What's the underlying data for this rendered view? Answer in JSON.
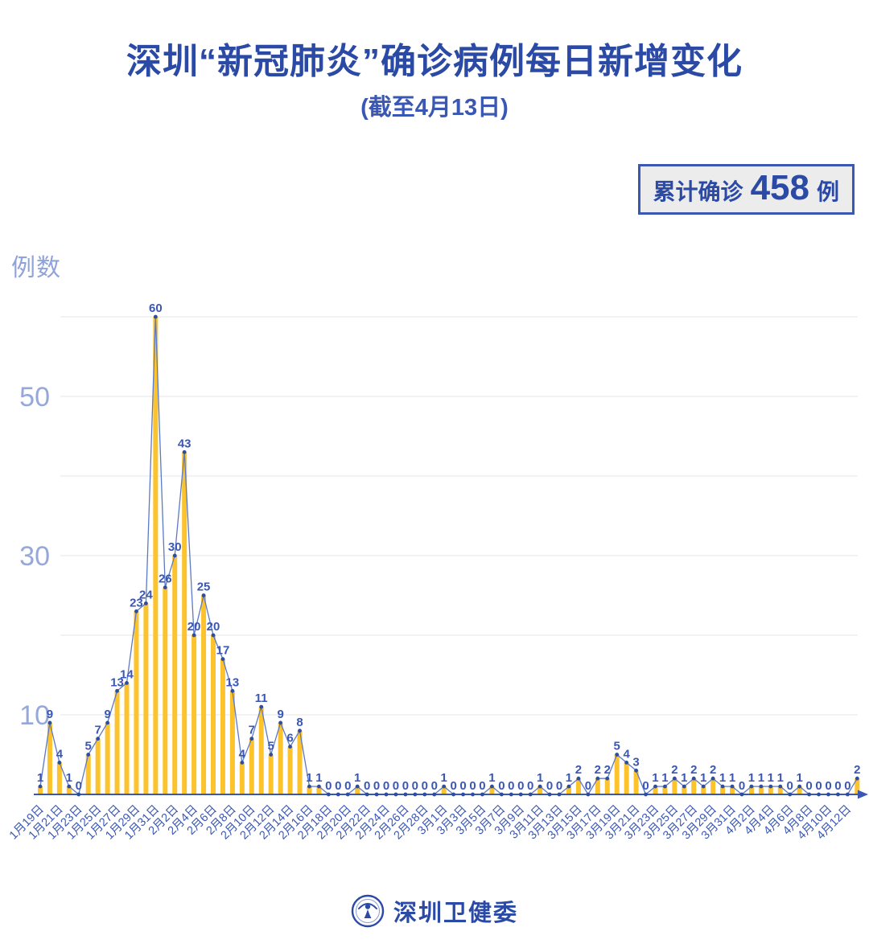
{
  "title": "深圳“新冠肺炎”确诊病例每日新增变化",
  "subtitle": "(截至4月13日)",
  "summary_badge": {
    "prefix": "累计确诊",
    "count": "458",
    "suffix": "例"
  },
  "footer": {
    "org": "深圳卫健委",
    "logo": "shenzhen-health-commission-seal"
  },
  "chart_data": {
    "type": "bar",
    "title": "深圳“新冠肺炎”确诊病例每日新增变化",
    "subtitle": "(截至4月13日)",
    "xlabel": "",
    "ylabel": "例数",
    "ylim": [
      0,
      62
    ],
    "grid": "horizontal",
    "gridline_values": [
      10,
      20,
      30,
      40,
      50,
      60
    ],
    "y_axis_labeled_ticks": [
      "10",
      "30",
      "50"
    ],
    "x_tick_interval": 2,
    "x_tick_labels": [
      "1月19日",
      "1月21日",
      "1月23日",
      "1月25日",
      "1月27日",
      "1月29日",
      "1月31日",
      "2月2日",
      "2月4日",
      "2月6日",
      "2月8日",
      "2月10日",
      "2月12日",
      "2月14日",
      "2月16日",
      "2月18日",
      "2月20日",
      "2月22日",
      "2月24日",
      "2月26日",
      "2月28日",
      "3月1日",
      "3月3日",
      "3月5日",
      "3月7日",
      "3月9日",
      "3月11日",
      "3月13日",
      "3月15日",
      "3月17日",
      "3月19日",
      "3月21日",
      "3月23日",
      "3月25日",
      "3月27日",
      "3月29日",
      "3月31日",
      "4月2日",
      "4月4日",
      "4月6日",
      "4月8日",
      "4月10日",
      "4月12日"
    ],
    "date_range": "1月19日 - 4月13日",
    "values": [
      1,
      9,
      4,
      1,
      0,
      5,
      7,
      9,
      13,
      14,
      23,
      24,
      60,
      26,
      30,
      43,
      20,
      25,
      20,
      17,
      13,
      4,
      7,
      11,
      5,
      9,
      6,
      8,
      1,
      1,
      0,
      0,
      0,
      1,
      0,
      0,
      0,
      0,
      0,
      0,
      0,
      0,
      1,
      0,
      0,
      0,
      0,
      1,
      0,
      0,
      0,
      0,
      1,
      0,
      0,
      1,
      2,
      0,
      2,
      2,
      5,
      4,
      3,
      0,
      1,
      1,
      2,
      1,
      2,
      1,
      2,
      1,
      1,
      0,
      1,
      1,
      1,
      1,
      0,
      1,
      0,
      0,
      0,
      0,
      0,
      2
    ],
    "total": 458,
    "data_labels_shown": true,
    "legend": "none",
    "colors": {
      "background": "#FFFFFF",
      "title_text": "#2B4AA5",
      "bar": "#FCC32D",
      "line": "#5B79C4",
      "marker": "#2E4DA0",
      "value_label": "#3A57B4",
      "axis": "#3A57B4",
      "axis_tick_text": "#96A7DB",
      "grid": "#E9E9E9",
      "badge_bg": "#ECECEC",
      "badge_border": "#3A57B4"
    }
  }
}
